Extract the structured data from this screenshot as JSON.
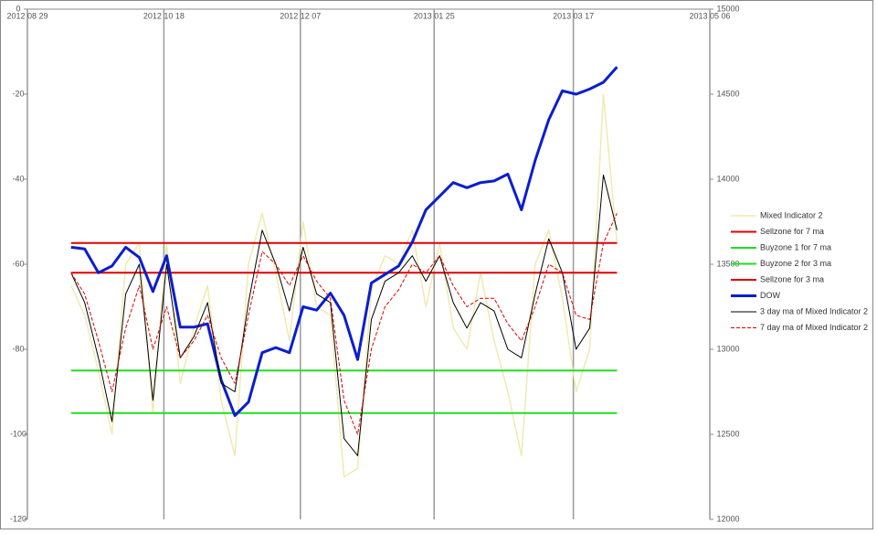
{
  "chart_data": {
    "type": "line",
    "x": [
      "2012-09-14",
      "2012-09-19",
      "2012-09-24",
      "2012-09-29",
      "2012-10-04",
      "2012-10-09",
      "2012-10-14",
      "2012-10-19",
      "2012-10-24",
      "2012-10-29",
      "2012-11-03",
      "2012-11-08",
      "2012-11-13",
      "2012-11-18",
      "2012-11-23",
      "2012-11-28",
      "2012-12-03",
      "2012-12-08",
      "2012-12-13",
      "2012-12-18",
      "2012-12-23",
      "2012-12-28",
      "2013-01-02",
      "2013-01-07",
      "2013-01-12",
      "2013-01-17",
      "2013-01-22",
      "2013-01-27",
      "2013-02-01",
      "2013-02-06",
      "2013-02-11",
      "2013-02-16",
      "2013-02-21",
      "2013-02-26",
      "2013-03-03",
      "2013-03-08",
      "2013-03-13",
      "2013-03-18",
      "2013-03-23",
      "2013-03-28",
      "2013-04-02"
    ],
    "xlim": [
      "2012-08-29",
      "2013-05-06"
    ],
    "xticks": [
      {
        "value": "2012-08-29",
        "label": "2012 08 29"
      },
      {
        "value": "2012-10-18",
        "label": "2012 10 18"
      },
      {
        "value": "2012-12-07",
        "label": "2012 12 07"
      },
      {
        "value": "2013-01-25",
        "label": "2013 01 25"
      },
      {
        "value": "2013-03-17",
        "label": "2013 03 17"
      },
      {
        "value": "2013-05-06",
        "label": "2013 05 06"
      }
    ],
    "ylim": [
      -120,
      0
    ],
    "yticks": [
      0,
      -20,
      -40,
      -60,
      -80,
      -100,
      -120
    ],
    "y2lim": [
      12000,
      15000
    ],
    "y2ticks": [
      15000,
      14500,
      14000,
      13500,
      13000,
      12500,
      12000
    ],
    "series": [
      {
        "name": "Mixed Indicator 2",
        "color": "#f0eab0",
        "values": [
          -65,
          -72,
          -85,
          -100,
          -60,
          -55,
          -95,
          -55,
          -88,
          -75,
          -65,
          -92,
          -105,
          -60,
          -48,
          -62,
          -78,
          -50,
          -70,
          -72,
          -110,
          -108,
          -66,
          -58,
          -60,
          -52,
          -70,
          -55,
          -75,
          -80,
          -62,
          -78,
          -90,
          -105,
          -60,
          -52,
          -68,
          -90,
          -80,
          -20,
          -55
        ]
      },
      {
        "name": "Sellzone for 7 ma",
        "color": "#e00000",
        "value": -55
      },
      {
        "name": "Buyzone 1 for 7 ma",
        "color": "#22dd22",
        "value": -85
      },
      {
        "name": "Buyzone 2 for 3 ma",
        "color": "#22dd22",
        "value": -95
      },
      {
        "name": "Sellzone for 3 ma",
        "color": "#e00000",
        "value": -62
      },
      {
        "name": "DOW",
        "color": "#0a1ed0",
        "axis": "y2",
        "values": [
          13600,
          13590,
          13450,
          13490,
          13600,
          13540,
          13340,
          13550,
          13130,
          13130,
          13150,
          12820,
          12610,
          12690,
          12980,
          13010,
          12980,
          13250,
          13230,
          13330,
          13200,
          12940,
          13390,
          13440,
          13490,
          13630,
          13820,
          13900,
          13980,
          13950,
          13980,
          13990,
          14030,
          13820,
          14110,
          14350,
          14520,
          14500,
          14530,
          14570,
          14660
        ]
      },
      {
        "name": "3 day ma of Mixed Indicator 2",
        "color": "#000000",
        "values": [
          -62,
          -69,
          -82,
          -97,
          -67,
          -60,
          -92,
          -60,
          -82,
          -77,
          -69,
          -88,
          -90,
          -69,
          -52,
          -60,
          -71,
          -56,
          -67,
          -69,
          -101,
          -105,
          -73,
          -64,
          -62,
          -58,
          -64,
          -58,
          -69,
          -75,
          -69,
          -71,
          -80,
          -82,
          -67,
          -54,
          -62,
          -80,
          -75,
          -39,
          -52
        ]
      },
      {
        "name": "7 day ma of Mixed Indicator 2",
        "color": "#e00000",
        "dash": true,
        "values": [
          -62,
          -67,
          -78,
          -90,
          -75,
          -65,
          -80,
          -70,
          -82,
          -78,
          -72,
          -82,
          -88,
          -72,
          -57,
          -60,
          -65,
          -58,
          -64,
          -68,
          -92,
          -100,
          -80,
          -70,
          -66,
          -60,
          -62,
          -58,
          -65,
          -70,
          -68,
          -68,
          -74,
          -78,
          -70,
          -60,
          -62,
          -72,
          -73,
          -55,
          -48
        ]
      }
    ]
  }
}
